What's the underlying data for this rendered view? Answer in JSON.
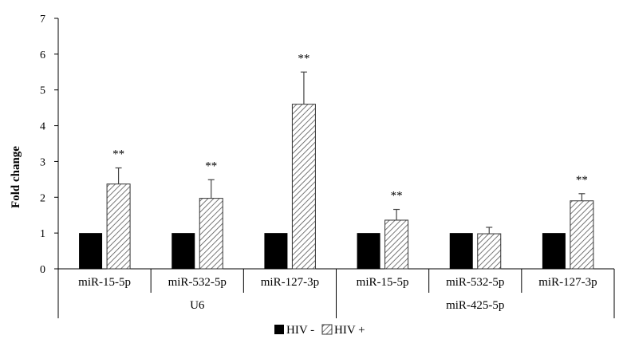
{
  "chart_data": {
    "type": "bar",
    "ylabel": "Fold change",
    "ylim": [
      0,
      7
    ],
    "yticks": [
      0,
      1,
      2,
      3,
      4,
      5,
      6,
      7
    ],
    "categories": [
      "miR-15-5p",
      "miR-532-5p",
      "miR-127-3p",
      "miR-15-5p",
      "miR-532-5p",
      "miR-127-3p"
    ],
    "groups": [
      {
        "label": "U6",
        "span": [
          0,
          2
        ]
      },
      {
        "label": "miR-425-5p",
        "span": [
          3,
          5
        ]
      }
    ],
    "series": [
      {
        "name": "HIV -",
        "values": [
          1,
          1,
          1,
          1,
          1,
          1
        ],
        "errors": [
          0,
          0,
          0,
          0,
          0,
          0
        ],
        "color": "#000000"
      },
      {
        "name": "HIV +",
        "values": [
          2.37,
          1.97,
          4.6,
          1.36,
          0.98,
          1.9
        ],
        "errors": [
          0.45,
          0.52,
          0.9,
          0.3,
          0.18,
          0.2
        ],
        "color": "hatched"
      }
    ],
    "significance": [
      "**",
      "**",
      "**",
      "**",
      "",
      "**"
    ],
    "legend_position": "bottom-center",
    "grid": false
  }
}
